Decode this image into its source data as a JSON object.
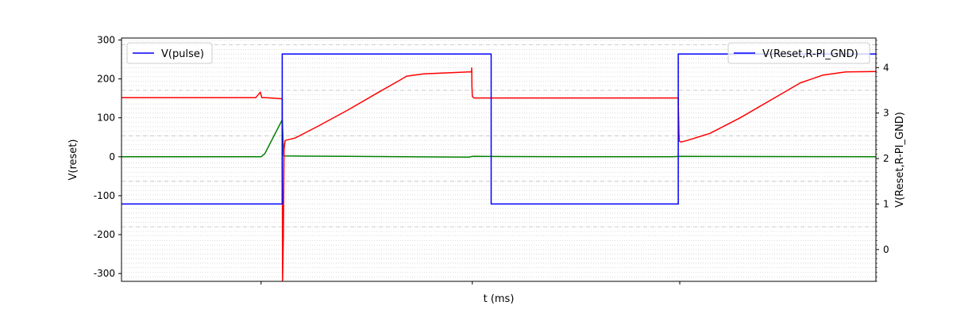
{
  "chart_data": {
    "type": "line",
    "xlabel": "t (ms)",
    "ylabel_left": "V(reset)",
    "ylabel_right": "V(Reset,R-PI_GND)",
    "x_range": [
      0,
      1
    ],
    "ylim_left": [
      -320,
      305
    ],
    "ylim_right": [
      -0.7,
      4.65
    ],
    "left_ticks": [
      300,
      200,
      100,
      0,
      -100,
      -200,
      -300
    ],
    "right_ticks": [
      4,
      3,
      2,
      1,
      0
    ],
    "grid": "on (dotted minor, dashed major)",
    "legend_left": {
      "position": "upper-left",
      "label": "V(pulse)",
      "color": "#0000ff"
    },
    "legend_right": {
      "position": "upper-right",
      "label": "V(Reset,R-PI_GND)",
      "color": "#0000ff"
    },
    "series": [
      {
        "name": "V(pulse)",
        "axis": "right",
        "color": "#0000ff",
        "x": [
          0,
          0.213,
          0.213,
          0.49,
          0.49,
          0.738,
          0.738,
          1
        ],
        "y": [
          1,
          1,
          4.3,
          4.3,
          1,
          1,
          4.3,
          4.3
        ]
      },
      {
        "axis": "left",
        "color": "#ff0000",
        "x": [
          0,
          0.178,
          0.184,
          0.186,
          0.192,
          0.213,
          0.213,
          0.2135,
          0.2145,
          0.2155,
          0.217,
          0.23,
          0.26,
          0.3,
          0.34,
          0.37,
          0.378,
          0.4,
          0.46,
          0.464,
          0.4642,
          0.4645,
          0.465,
          0.467,
          0.48,
          0.738,
          0.7382,
          0.739,
          0.7395,
          0.742,
          0.75,
          0.78,
          0.82,
          0.86,
          0.9,
          0.93,
          0.96,
          1
        ],
        "y": [
          152,
          152,
          166,
          152,
          152,
          149,
          100,
          -318,
          -210,
          20,
          42,
          48,
          78,
          120,
          165,
          198,
          207,
          213,
          218,
          218,
          228,
          180,
          155,
          151,
          151,
          151,
          120,
          60,
          40,
          38,
          42,
          60,
          100,
          145,
          190,
          210,
          218,
          219
        ]
      },
      {
        "axis": "left",
        "color": "#008000",
        "x": [
          0,
          0.185,
          0.19,
          0.213,
          0.215,
          0.3,
          0.46,
          0.466,
          0.6,
          0.73,
          0.74,
          1
        ],
        "y": [
          0,
          0,
          8,
          95,
          2,
          1,
          -1,
          1,
          0,
          0,
          1,
          0
        ]
      }
    ]
  }
}
